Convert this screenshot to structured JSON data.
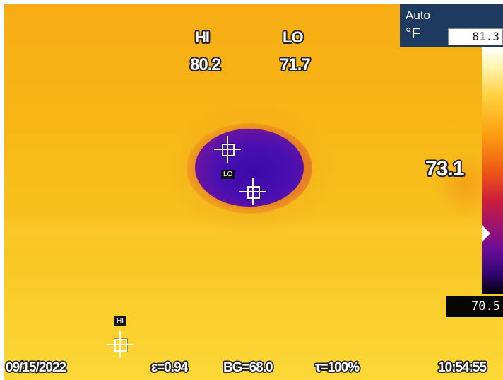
{
  "readouts": {
    "hi_label": "HI",
    "lo_label": "LO",
    "hi_value": "80.2",
    "lo_value": "71.7"
  },
  "markers": {
    "lo_tag": "LO",
    "hi_tag": "HI"
  },
  "scale": {
    "mode": "Auto",
    "unit": "°F",
    "max_value": "81.3",
    "span_value": "73.1",
    "min_value": "70.5"
  },
  "status_bar": {
    "date": "09/15/2022",
    "emissivity": "ε=0.94",
    "background": "BG=68.0",
    "transmission": "τ=100%",
    "time": "10:54:55"
  },
  "colors": {
    "background": "#f7b616",
    "cold_spot": "#3a0aa8",
    "panel": "#1e3b5f"
  }
}
